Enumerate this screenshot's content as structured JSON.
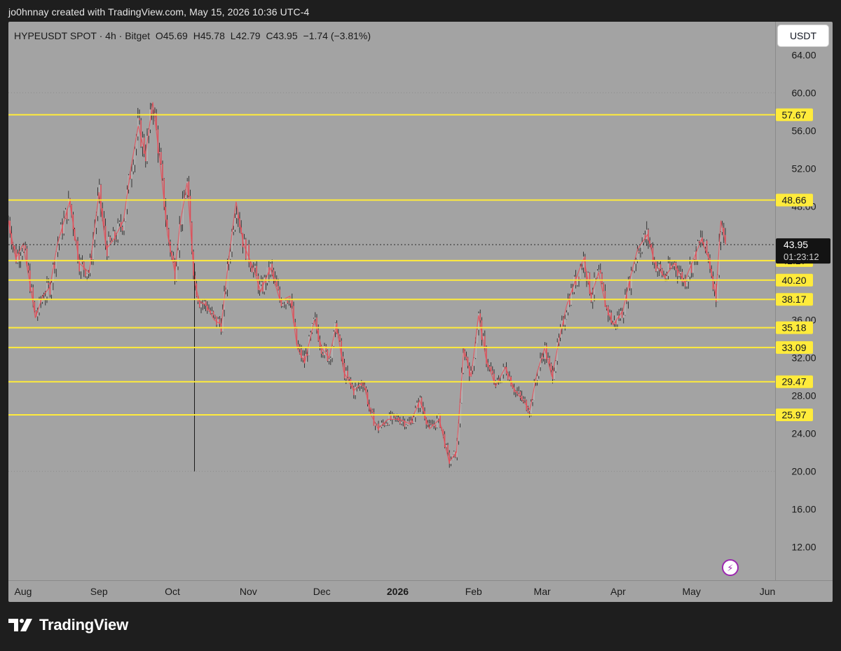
{
  "header": {
    "caption": "jo0hnnay created with TradingView.com, May 15, 2026 10:36 UTC-4"
  },
  "legend": {
    "symbol": "HYPEUSDT SPOT · 4h · Bitget",
    "open": "O45.69",
    "high": "H45.78",
    "low": "L42.79",
    "close": "C43.95",
    "change": "−1.74 (−3.81%)"
  },
  "toolbar": {
    "currency_label": "USDT"
  },
  "footer": {
    "brand": "TradingView"
  },
  "colors": {
    "background": "#1e1e1e",
    "pane": "#a3a3a3",
    "candle": "#e8505b",
    "wick": "#1a1a1a",
    "level_line": "#ffeb3b",
    "level_label_bg": "#ffeb3b"
  },
  "icons": {
    "bolt": "lightning-bolt-icon",
    "logo": "tradingview-logo-icon"
  },
  "chart_data": {
    "type": "candlestick",
    "symbol": "HYPEUSDT",
    "timeframe": "4h",
    "ylim": [
      8.5,
      67.5
    ],
    "y_ticks": [
      "64.00",
      "60.00",
      "56.00",
      "52.00",
      "48.00",
      "36.00",
      "32.00",
      "28.00",
      "24.00",
      "20.00",
      "16.00",
      "12.00"
    ],
    "y_tick_values": [
      64,
      60,
      56,
      52,
      48,
      36,
      32,
      28,
      24,
      20,
      16,
      12
    ],
    "x_ticks": [
      {
        "label": "Aug",
        "date": "2025-08-01",
        "bold": false
      },
      {
        "label": "Sep",
        "date": "2025-09-01",
        "bold": false
      },
      {
        "label": "Oct",
        "date": "2025-10-01",
        "bold": false
      },
      {
        "label": "Nov",
        "date": "2025-11-01",
        "bold": false
      },
      {
        "label": "Dec",
        "date": "2025-12-01",
        "bold": false
      },
      {
        "label": "2026",
        "date": "2026-01-01",
        "bold": true
      },
      {
        "label": "Feb",
        "date": "2026-02-01",
        "bold": false
      },
      {
        "label": "Mar",
        "date": "2026-03-01",
        "bold": false
      },
      {
        "label": "Apr",
        "date": "2026-04-01",
        "bold": false
      },
      {
        "label": "May",
        "date": "2026-05-01",
        "bold": false
      },
      {
        "label": "Jun",
        "date": "2026-06-01",
        "bold": false
      }
    ],
    "horizontal_levels": [
      {
        "value": 57.67,
        "label": "57.67"
      },
      {
        "value": 48.66,
        "label": "48.66"
      },
      {
        "value": 42.27,
        "label": "42.27"
      },
      {
        "value": 40.2,
        "label": "40.20"
      },
      {
        "value": 38.17,
        "label": "38.17"
      },
      {
        "value": 35.18,
        "label": "35.18"
      },
      {
        "value": 33.09,
        "label": "33.09"
      },
      {
        "value": 29.47,
        "label": "29.47"
      },
      {
        "value": 25.97,
        "label": "25.97"
      }
    ],
    "dotted_levels": [
      60.0,
      20.0
    ],
    "current_price": {
      "value": 43.95,
      "label": "43.95",
      "countdown": "01:23:12"
    },
    "wicks": [
      {
        "date": "2025-10-10",
        "high": 42.0,
        "low": 20.0
      }
    ],
    "price_path": [
      {
        "date": "2025-07-26",
        "price": 46.5
      },
      {
        "date": "2025-07-29",
        "price": 42.5
      },
      {
        "date": "2025-08-01",
        "price": 44.0
      },
      {
        "date": "2025-08-04",
        "price": 39.5
      },
      {
        "date": "2025-08-06",
        "price": 36.2
      },
      {
        "date": "2025-08-09",
        "price": 38.5
      },
      {
        "date": "2025-08-12",
        "price": 39.5
      },
      {
        "date": "2025-08-15",
        "price": 44.0
      },
      {
        "date": "2025-08-20",
        "price": 48.5
      },
      {
        "date": "2025-08-24",
        "price": 42.0
      },
      {
        "date": "2025-08-28",
        "price": 41.0
      },
      {
        "date": "2025-09-01",
        "price": 49.5
      },
      {
        "date": "2025-09-04",
        "price": 43.5
      },
      {
        "date": "2025-09-07",
        "price": 44.5
      },
      {
        "date": "2025-09-11",
        "price": 46.5
      },
      {
        "date": "2025-09-14",
        "price": 52.0
      },
      {
        "date": "2025-09-17",
        "price": 56.5
      },
      {
        "date": "2025-09-20",
        "price": 53.5
      },
      {
        "date": "2025-09-23",
        "price": 59.0
      },
      {
        "date": "2025-09-26",
        "price": 52.5
      },
      {
        "date": "2025-09-29",
        "price": 45.0
      },
      {
        "date": "2025-10-02",
        "price": 41.0
      },
      {
        "date": "2025-10-04",
        "price": 46.0
      },
      {
        "date": "2025-10-07",
        "price": 50.5
      },
      {
        "date": "2025-10-10",
        "price": 40.0
      },
      {
        "date": "2025-10-12",
        "price": 38.0
      },
      {
        "date": "2025-10-15",
        "price": 37.5
      },
      {
        "date": "2025-10-18",
        "price": 36.0
      },
      {
        "date": "2025-10-21",
        "price": 35.5
      },
      {
        "date": "2025-10-24",
        "price": 42.5
      },
      {
        "date": "2025-10-27",
        "price": 48.5
      },
      {
        "date": "2025-10-30",
        "price": 44.0
      },
      {
        "date": "2025-11-03",
        "price": 41.5
      },
      {
        "date": "2025-11-06",
        "price": 39.0
      },
      {
        "date": "2025-11-10",
        "price": 41.5
      },
      {
        "date": "2025-11-14",
        "price": 38.0
      },
      {
        "date": "2025-11-18",
        "price": 38.5
      },
      {
        "date": "2025-11-21",
        "price": 33.0
      },
      {
        "date": "2025-11-24",
        "price": 31.5
      },
      {
        "date": "2025-11-28",
        "price": 36.0
      },
      {
        "date": "2025-12-01",
        "price": 33.0
      },
      {
        "date": "2025-12-04",
        "price": 32.0
      },
      {
        "date": "2025-12-07",
        "price": 35.5
      },
      {
        "date": "2025-12-10",
        "price": 30.5
      },
      {
        "date": "2025-12-14",
        "price": 28.5
      },
      {
        "date": "2025-12-18",
        "price": 29.5
      },
      {
        "date": "2025-12-21",
        "price": 26.0
      },
      {
        "date": "2025-12-24",
        "price": 24.5
      },
      {
        "date": "2025-12-28",
        "price": 25.5
      },
      {
        "date": "2026-01-02",
        "price": 25.5
      },
      {
        "date": "2026-01-06",
        "price": 25.0
      },
      {
        "date": "2026-01-10",
        "price": 27.5
      },
      {
        "date": "2026-01-14",
        "price": 24.5
      },
      {
        "date": "2026-01-18",
        "price": 25.5
      },
      {
        "date": "2026-01-22",
        "price": 21.0
      },
      {
        "date": "2026-01-25",
        "price": 22.0
      },
      {
        "date": "2026-01-28",
        "price": 33.0
      },
      {
        "date": "2026-01-31",
        "price": 30.0
      },
      {
        "date": "2026-02-03",
        "price": 36.5
      },
      {
        "date": "2026-02-06",
        "price": 32.0
      },
      {
        "date": "2026-02-10",
        "price": 29.0
      },
      {
        "date": "2026-02-14",
        "price": 31.0
      },
      {
        "date": "2026-02-18",
        "price": 28.5
      },
      {
        "date": "2026-02-21",
        "price": 27.5
      },
      {
        "date": "2026-02-24",
        "price": 26.5
      },
      {
        "date": "2026-02-27",
        "price": 30.5
      },
      {
        "date": "2026-03-02",
        "price": 33.0
      },
      {
        "date": "2026-03-05",
        "price": 30.0
      },
      {
        "date": "2026-03-08",
        "price": 34.0
      },
      {
        "date": "2026-03-11",
        "price": 37.5
      },
      {
        "date": "2026-03-15",
        "price": 40.5
      },
      {
        "date": "2026-03-18",
        "price": 42.5
      },
      {
        "date": "2026-03-21",
        "price": 38.5
      },
      {
        "date": "2026-03-24",
        "price": 41.0
      },
      {
        "date": "2026-03-27",
        "price": 37.5
      },
      {
        "date": "2026-03-30",
        "price": 35.5
      },
      {
        "date": "2026-04-03",
        "price": 37.0
      },
      {
        "date": "2026-04-06",
        "price": 40.5
      },
      {
        "date": "2026-04-09",
        "price": 43.5
      },
      {
        "date": "2026-04-13",
        "price": 45.0
      },
      {
        "date": "2026-04-16",
        "price": 42.0
      },
      {
        "date": "2026-04-20",
        "price": 40.5
      },
      {
        "date": "2026-04-24",
        "price": 42.0
      },
      {
        "date": "2026-04-28",
        "price": 40.0
      },
      {
        "date": "2026-05-02",
        "price": 42.5
      },
      {
        "date": "2026-05-05",
        "price": 44.5
      },
      {
        "date": "2026-05-08",
        "price": 42.5
      },
      {
        "date": "2026-05-11",
        "price": 38.5
      },
      {
        "date": "2026-05-13",
        "price": 46.5
      },
      {
        "date": "2026-05-15",
        "price": 43.95
      }
    ]
  }
}
